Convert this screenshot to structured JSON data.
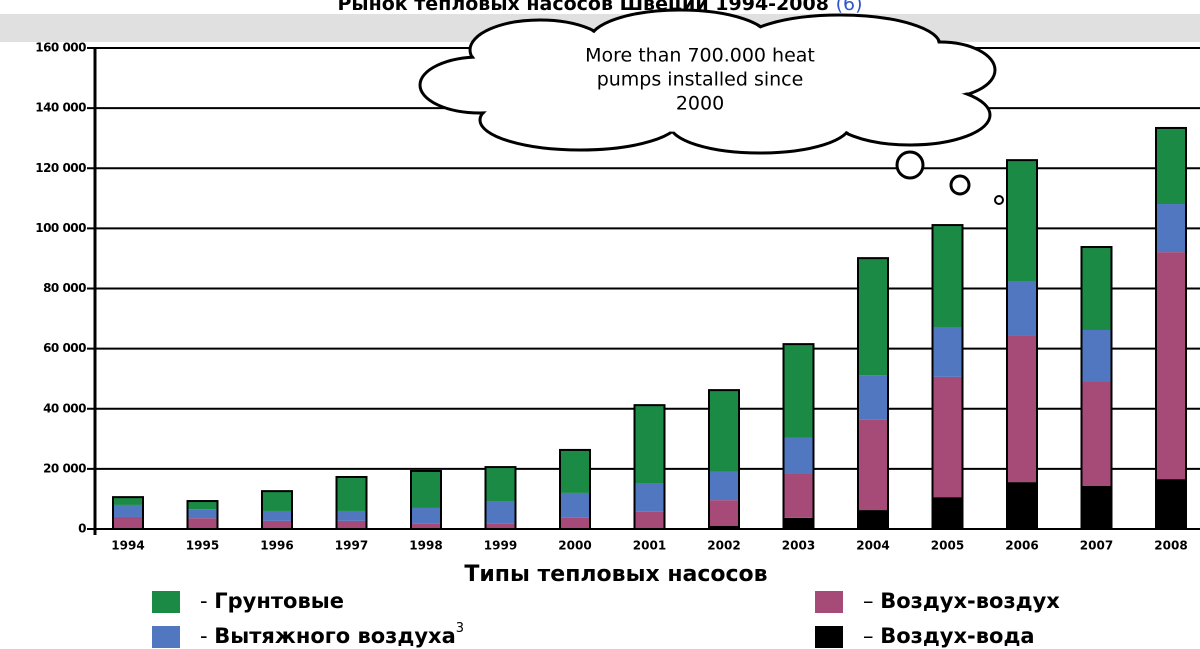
{
  "chart_data": {
    "type": "stacked-bar",
    "title": "Рынок тепловых насосов Швеции 1994-2008",
    "title_ref": "(6)",
    "annotation": [
      "More than 700.000 heat",
      "pumps installed since",
      "2000"
    ],
    "legend_title": "Типы тепловых насосов",
    "categories": [
      "1994",
      "1995",
      "1996",
      "1997",
      "1998",
      "1999",
      "2000",
      "2001",
      "2002",
      "2003",
      "2004",
      "2005",
      "2006",
      "2007",
      "2008"
    ],
    "series": [
      {
        "name": "Воздух-вода",
        "legend_prefix": "–",
        "color": "#000000",
        "values": [
          0,
          0,
          0,
          0,
          0,
          0,
          0,
          0,
          1000,
          3700,
          6300,
          10600,
          15600,
          14300,
          16600
        ]
      },
      {
        "name": "Воздух-воздух",
        "legend_prefix": "–",
        "color": "#a64a78",
        "values": [
          4000,
          3600,
          2700,
          2700,
          1700,
          1700,
          3700,
          5700,
          8600,
          14600,
          30000,
          40000,
          48900,
          34600,
          75500
        ]
      },
      {
        "name": "Вытяжного воздуха",
        "legend_prefix": "-",
        "name_note": "3",
        "color": "#5077c0",
        "values": [
          4000,
          3000,
          3300,
          3300,
          5300,
          7600,
          8300,
          9600,
          9400,
          12000,
          14900,
          16600,
          18000,
          17300,
          16000
        ]
      },
      {
        "name": "Грунтовые",
        "legend_prefix": "-",
        "color": "#1a8a45",
        "values": [
          2600,
          2700,
          6600,
          11300,
          12300,
          11300,
          14300,
          25900,
          27200,
          31200,
          38900,
          33900,
          40200,
          27600,
          25300
        ]
      }
    ],
    "ylim": [
      0,
      160000
    ],
    "yticks": [
      0,
      {
        "value": 20000,
        "label": "20 000"
      },
      {
        "value": 40000,
        "label": "40 000"
      },
      {
        "value": 60000,
        "label": "60 000"
      },
      {
        "value": 80000,
        "label": "80 000"
      },
      {
        "value": 100000,
        "label": "100 000"
      },
      {
        "value": 120000,
        "label": "120 000"
      },
      {
        "value": 140000,
        "label": "140 000"
      },
      {
        "value": 160000,
        "label": "160 000"
      }
    ],
    "grid": true
  }
}
